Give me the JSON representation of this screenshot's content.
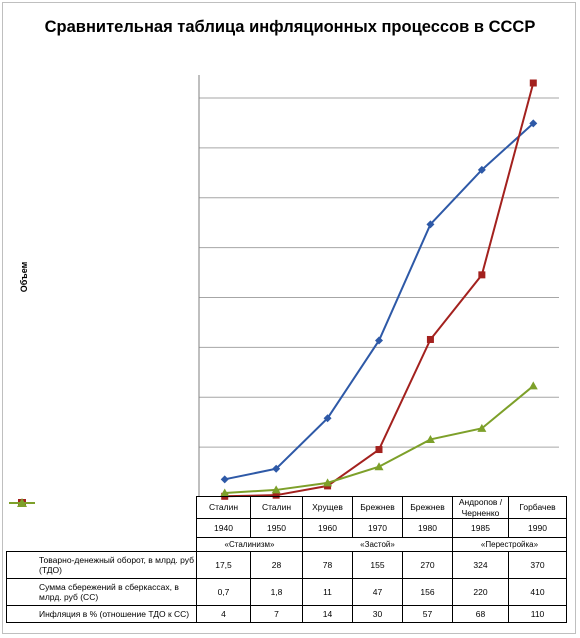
{
  "title": "Сравнительная таблица инфляционных процессов в СССР",
  "ylabel": "Объем",
  "leaders": [
    "Сталин",
    "Сталин",
    "Хрущев",
    "Брежнев",
    "Брежнев",
    "Андропов / Черненко",
    "Горбачев"
  ],
  "eras": [
    "«Сталинизм»",
    "«Застой»",
    "«Перестройка»"
  ],
  "chart_data": {
    "type": "line",
    "categories": [
      "1940",
      "1950",
      "1960",
      "1970",
      "1980",
      "1985",
      "1990"
    ],
    "ylim": [
      0,
      410
    ],
    "grid": true,
    "legend": "table-left",
    "series": [
      {
        "name": "Товарно-денежный оборот, в млрд. руб (ТДО)",
        "color": "#2E59A7",
        "marker": "diamond",
        "values": [
          17.5,
          28,
          78,
          155,
          270,
          324,
          370
        ],
        "labels": [
          "17,5",
          "28",
          "78",
          "155",
          "270",
          "324",
          "370"
        ]
      },
      {
        "name": "Сумма сбережений в сберкассах, в млрд. руб (СС)",
        "color": "#A3211E",
        "marker": "square",
        "values": [
          0.7,
          1.8,
          11,
          47,
          156,
          220,
          410
        ],
        "labels": [
          "0,7",
          "1,8",
          "11",
          "47",
          "156",
          "220",
          "410"
        ]
      },
      {
        "name": "Инфляция в % (отношение ТДО к СС)",
        "color": "#7DA02A",
        "marker": "triangle",
        "values": [
          4,
          7,
          14,
          30,
          57,
          68,
          110
        ],
        "labels": [
          "4",
          "7",
          "14",
          "30",
          "57",
          "68",
          "110"
        ]
      }
    ]
  }
}
